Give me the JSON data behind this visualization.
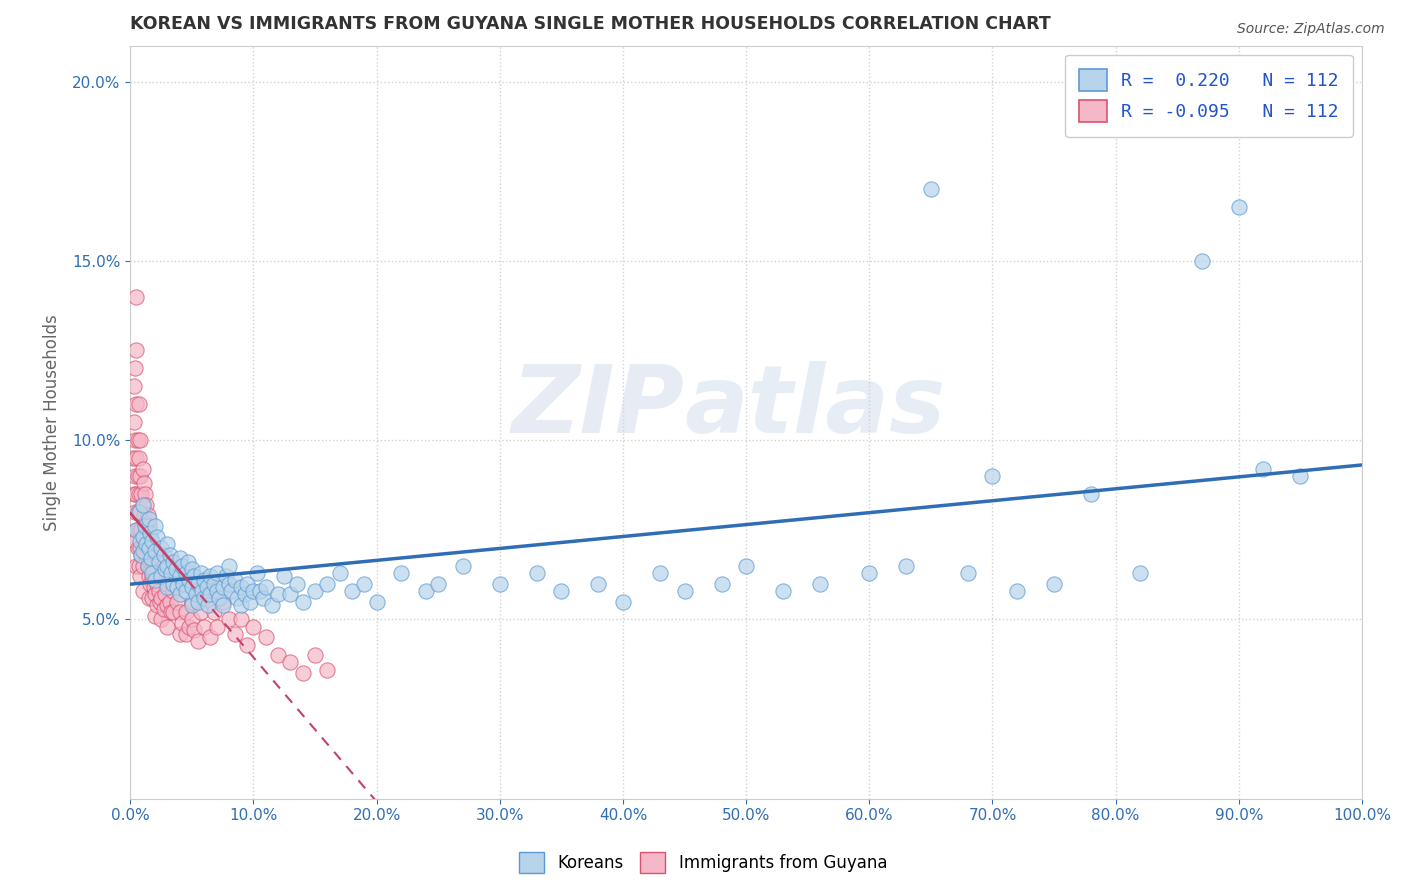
{
  "title": "KOREAN VS IMMIGRANTS FROM GUYANA SINGLE MOTHER HOUSEHOLDS CORRELATION CHART",
  "source": "Source: ZipAtlas.com",
  "ylabel": "Single Mother Households",
  "r_korean": 0.22,
  "r_guyana": -0.095,
  "n_korean": 112,
  "n_guyana": 112,
  "xlim": [
    0,
    1.0
  ],
  "ylim": [
    0,
    0.21
  ],
  "x_ticks": [
    0.0,
    0.1,
    0.2,
    0.3,
    0.4,
    0.5,
    0.6,
    0.7,
    0.8,
    0.9,
    1.0
  ],
  "y_ticks": [
    0.05,
    0.1,
    0.15,
    0.2
  ],
  "color_korean_fill": "#b8d4ea",
  "color_korean_edge": "#5b9bd5",
  "color_guyana_fill": "#f5b8c8",
  "color_guyana_edge": "#d9546e",
  "color_line_korean": "#2f6eb5",
  "color_line_guyana": "#c94068",
  "watermark_color": "#d0d8e8",
  "background_color": "#ffffff",
  "legend_text_color": "#2255cc",
  "title_color": "#333333",
  "korean_scatter": [
    [
      0.005,
      0.075
    ],
    [
      0.007,
      0.08
    ],
    [
      0.008,
      0.072
    ],
    [
      0.009,
      0.068
    ],
    [
      0.01,
      0.082
    ],
    [
      0.01,
      0.073
    ],
    [
      0.01,
      0.069
    ],
    [
      0.012,
      0.076
    ],
    [
      0.013,
      0.071
    ],
    [
      0.014,
      0.065
    ],
    [
      0.015,
      0.078
    ],
    [
      0.015,
      0.07
    ],
    [
      0.016,
      0.074
    ],
    [
      0.017,
      0.067
    ],
    [
      0.018,
      0.072
    ],
    [
      0.018,
      0.063
    ],
    [
      0.02,
      0.076
    ],
    [
      0.02,
      0.069
    ],
    [
      0.02,
      0.061
    ],
    [
      0.022,
      0.073
    ],
    [
      0.023,
      0.066
    ],
    [
      0.025,
      0.07
    ],
    [
      0.025,
      0.062
    ],
    [
      0.027,
      0.068
    ],
    [
      0.028,
      0.064
    ],
    [
      0.03,
      0.071
    ],
    [
      0.03,
      0.065
    ],
    [
      0.03,
      0.059
    ],
    [
      0.032,
      0.068
    ],
    [
      0.033,
      0.063
    ],
    [
      0.035,
      0.066
    ],
    [
      0.035,
      0.06
    ],
    [
      0.037,
      0.064
    ],
    [
      0.038,
      0.059
    ],
    [
      0.04,
      0.067
    ],
    [
      0.04,
      0.062
    ],
    [
      0.04,
      0.057
    ],
    [
      0.042,
      0.065
    ],
    [
      0.043,
      0.06
    ],
    [
      0.045,
      0.063
    ],
    [
      0.045,
      0.058
    ],
    [
      0.047,
      0.066
    ],
    [
      0.048,
      0.061
    ],
    [
      0.05,
      0.064
    ],
    [
      0.05,
      0.059
    ],
    [
      0.05,
      0.054
    ],
    [
      0.052,
      0.062
    ],
    [
      0.053,
      0.057
    ],
    [
      0.055,
      0.06
    ],
    [
      0.055,
      0.055
    ],
    [
      0.057,
      0.063
    ],
    [
      0.058,
      0.058
    ],
    [
      0.06,
      0.061
    ],
    [
      0.06,
      0.056
    ],
    [
      0.062,
      0.059
    ],
    [
      0.063,
      0.054
    ],
    [
      0.065,
      0.062
    ],
    [
      0.065,
      0.057
    ],
    [
      0.068,
      0.06
    ],
    [
      0.07,
      0.063
    ],
    [
      0.07,
      0.058
    ],
    [
      0.072,
      0.056
    ],
    [
      0.075,
      0.059
    ],
    [
      0.075,
      0.054
    ],
    [
      0.078,
      0.062
    ],
    [
      0.08,
      0.065
    ],
    [
      0.08,
      0.06
    ],
    [
      0.082,
      0.058
    ],
    [
      0.085,
      0.061
    ],
    [
      0.087,
      0.056
    ],
    [
      0.09,
      0.059
    ],
    [
      0.09,
      0.054
    ],
    [
      0.093,
      0.057
    ],
    [
      0.095,
      0.06
    ],
    [
      0.097,
      0.055
    ],
    [
      0.1,
      0.058
    ],
    [
      0.103,
      0.063
    ],
    [
      0.105,
      0.058
    ],
    [
      0.108,
      0.056
    ],
    [
      0.11,
      0.059
    ],
    [
      0.115,
      0.054
    ],
    [
      0.12,
      0.057
    ],
    [
      0.125,
      0.062
    ],
    [
      0.13,
      0.057
    ],
    [
      0.135,
      0.06
    ],
    [
      0.14,
      0.055
    ],
    [
      0.15,
      0.058
    ],
    [
      0.16,
      0.06
    ],
    [
      0.17,
      0.063
    ],
    [
      0.18,
      0.058
    ],
    [
      0.19,
      0.06
    ],
    [
      0.2,
      0.055
    ],
    [
      0.22,
      0.063
    ],
    [
      0.24,
      0.058
    ],
    [
      0.25,
      0.06
    ],
    [
      0.27,
      0.065
    ],
    [
      0.3,
      0.06
    ],
    [
      0.33,
      0.063
    ],
    [
      0.35,
      0.058
    ],
    [
      0.38,
      0.06
    ],
    [
      0.4,
      0.055
    ],
    [
      0.43,
      0.063
    ],
    [
      0.45,
      0.058
    ],
    [
      0.48,
      0.06
    ],
    [
      0.5,
      0.065
    ],
    [
      0.53,
      0.058
    ],
    [
      0.56,
      0.06
    ],
    [
      0.6,
      0.063
    ],
    [
      0.63,
      0.065
    ],
    [
      0.65,
      0.17
    ],
    [
      0.68,
      0.063
    ],
    [
      0.7,
      0.09
    ],
    [
      0.72,
      0.058
    ],
    [
      0.75,
      0.06
    ],
    [
      0.78,
      0.085
    ],
    [
      0.82,
      0.063
    ],
    [
      0.87,
      0.15
    ],
    [
      0.9,
      0.165
    ],
    [
      0.92,
      0.092
    ],
    [
      0.95,
      0.09
    ]
  ],
  "guyana_scatter": [
    [
      0.002,
      0.095
    ],
    [
      0.003,
      0.105
    ],
    [
      0.003,
      0.085
    ],
    [
      0.003,
      0.115
    ],
    [
      0.004,
      0.09
    ],
    [
      0.004,
      0.08
    ],
    [
      0.004,
      0.1
    ],
    [
      0.004,
      0.072
    ],
    [
      0.004,
      0.12
    ],
    [
      0.005,
      0.11
    ],
    [
      0.005,
      0.095
    ],
    [
      0.005,
      0.085
    ],
    [
      0.005,
      0.075
    ],
    [
      0.005,
      0.125
    ],
    [
      0.005,
      0.14
    ],
    [
      0.005,
      0.065
    ],
    [
      0.006,
      0.1
    ],
    [
      0.006,
      0.09
    ],
    [
      0.006,
      0.08
    ],
    [
      0.006,
      0.07
    ],
    [
      0.007,
      0.095
    ],
    [
      0.007,
      0.085
    ],
    [
      0.007,
      0.075
    ],
    [
      0.007,
      0.065
    ],
    [
      0.007,
      0.11
    ],
    [
      0.008,
      0.09
    ],
    [
      0.008,
      0.08
    ],
    [
      0.008,
      0.07
    ],
    [
      0.008,
      0.062
    ],
    [
      0.008,
      0.1
    ],
    [
      0.009,
      0.085
    ],
    [
      0.009,
      0.075
    ],
    [
      0.009,
      0.068
    ],
    [
      0.01,
      0.092
    ],
    [
      0.01,
      0.082
    ],
    [
      0.01,
      0.073
    ],
    [
      0.01,
      0.065
    ],
    [
      0.01,
      0.058
    ],
    [
      0.011,
      0.088
    ],
    [
      0.011,
      0.079
    ],
    [
      0.011,
      0.071
    ],
    [
      0.012,
      0.085
    ],
    [
      0.012,
      0.077
    ],
    [
      0.012,
      0.069
    ],
    [
      0.013,
      0.082
    ],
    [
      0.013,
      0.075
    ],
    [
      0.013,
      0.068
    ],
    [
      0.014,
      0.079
    ],
    [
      0.014,
      0.072
    ],
    [
      0.014,
      0.065
    ],
    [
      0.015,
      0.076
    ],
    [
      0.015,
      0.069
    ],
    [
      0.015,
      0.062
    ],
    [
      0.015,
      0.056
    ],
    [
      0.016,
      0.073
    ],
    [
      0.016,
      0.066
    ],
    [
      0.016,
      0.06
    ],
    [
      0.017,
      0.07
    ],
    [
      0.017,
      0.064
    ],
    [
      0.018,
      0.068
    ],
    [
      0.018,
      0.062
    ],
    [
      0.018,
      0.056
    ],
    [
      0.019,
      0.065
    ],
    [
      0.019,
      0.059
    ],
    [
      0.02,
      0.063
    ],
    [
      0.02,
      0.057
    ],
    [
      0.02,
      0.051
    ],
    [
      0.022,
      0.06
    ],
    [
      0.022,
      0.054
    ],
    [
      0.023,
      0.058
    ],
    [
      0.024,
      0.055
    ],
    [
      0.025,
      0.062
    ],
    [
      0.025,
      0.056
    ],
    [
      0.025,
      0.05
    ],
    [
      0.027,
      0.053
    ],
    [
      0.028,
      0.057
    ],
    [
      0.03,
      0.06
    ],
    [
      0.03,
      0.054
    ],
    [
      0.03,
      0.048
    ],
    [
      0.032,
      0.055
    ],
    [
      0.033,
      0.052
    ],
    [
      0.035,
      0.058
    ],
    [
      0.035,
      0.052
    ],
    [
      0.038,
      0.055
    ],
    [
      0.04,
      0.052
    ],
    [
      0.04,
      0.046
    ],
    [
      0.042,
      0.049
    ],
    [
      0.045,
      0.052
    ],
    [
      0.045,
      0.046
    ],
    [
      0.048,
      0.048
    ],
    [
      0.05,
      0.055
    ],
    [
      0.05,
      0.05
    ],
    [
      0.052,
      0.047
    ],
    [
      0.055,
      0.044
    ],
    [
      0.057,
      0.052
    ],
    [
      0.06,
      0.048
    ],
    [
      0.063,
      0.058
    ],
    [
      0.065,
      0.045
    ],
    [
      0.068,
      0.052
    ],
    [
      0.07,
      0.048
    ],
    [
      0.075,
      0.055
    ],
    [
      0.08,
      0.05
    ],
    [
      0.085,
      0.046
    ],
    [
      0.09,
      0.05
    ],
    [
      0.095,
      0.043
    ],
    [
      0.1,
      0.048
    ],
    [
      0.11,
      0.045
    ],
    [
      0.12,
      0.04
    ],
    [
      0.13,
      0.038
    ],
    [
      0.14,
      0.035
    ],
    [
      0.15,
      0.04
    ],
    [
      0.16,
      0.036
    ]
  ]
}
